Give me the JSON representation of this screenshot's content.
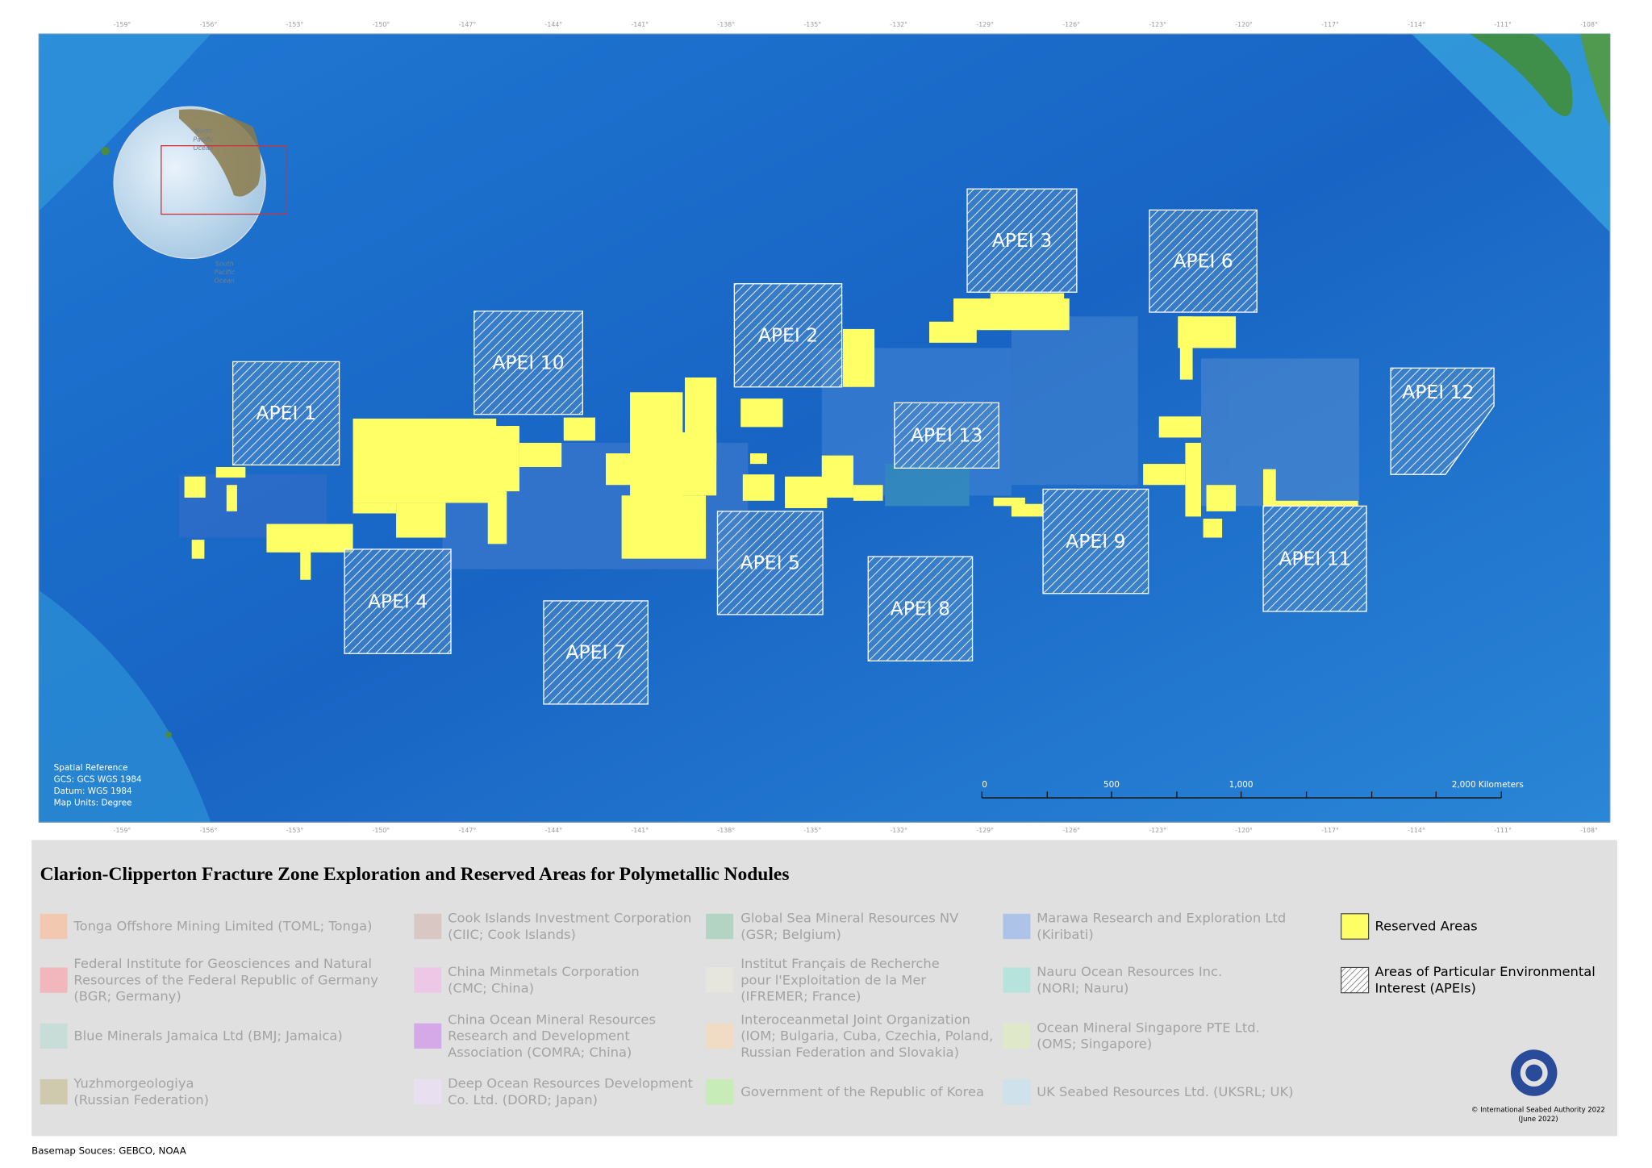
{
  "map": {
    "longitude_labels": [
      "-159°",
      "-156°",
      "-153°",
      "-150°",
      "-147°",
      "-144°",
      "-141°",
      "-138°",
      "-135°",
      "-132°",
      "-129°",
      "-126°",
      "-123°",
      "-120°",
      "-117°",
      "-114°",
      "-111°",
      "-108°"
    ],
    "apei_labels": [
      "APEI 1",
      "APEI 2",
      "APEI 3",
      "APEI 4",
      "APEI 5",
      "APEI 6",
      "APEI 7",
      "APEI 8",
      "APEI 9",
      "APEI 10",
      "APEI 11",
      "APEI 12",
      "APEI 13"
    ],
    "globe_labels": [
      [
        "North",
        "Pacific",
        "Ocean"
      ],
      [
        "South",
        "Pacific",
        "Ocean"
      ]
    ],
    "spatial_reference": [
      "Spatial Reference",
      "GCS: GCS WGS 1984",
      "Datum: WGS 1984",
      "Map Units: Degree"
    ],
    "scale_bar": [
      "0",
      "500",
      "1,000",
      "2,000 Kilometers"
    ]
  },
  "title": "Clarion-Clipperton Fracture Zone Exploration and Reserved Areas for Polymetallic Nodules",
  "legend": [
    {
      "label": [
        "Tonga Offshore Mining Limited (TOML; Tonga)"
      ],
      "color": "#f2c9b0"
    },
    {
      "label": [
        "Federal Institute for Geosciences and Natural",
        "Resources of the Federal Republic of Germany",
        "(BGR; Germany)"
      ],
      "color": "#f0b8bc"
    },
    {
      "label": [
        "Blue Minerals Jamaica Ltd (BMJ; Jamaica)"
      ],
      "color": "#c8dcd8"
    },
    {
      "label": [
        "Yuzhmorgeologiya",
        "(Russian Federation)"
      ],
      "color": "#cfc9ad"
    },
    {
      "label": [
        "Cook Islands Investment Corporation",
        "(CIIC; Cook Islands)"
      ],
      "color": "#d9c7c3"
    },
    {
      "label": [
        "China Minmetals Corporation",
        "(CMC; China)"
      ],
      "color": "#ecc8e6"
    },
    {
      "label": [
        "China Ocean Mineral Resources",
        "Research and Development",
        "Association (COMRA; China)"
      ],
      "color": "#d5a8e8"
    },
    {
      "label": [
        "Deep Ocean Resources Development",
        "Co. Ltd. (DORD; Japan)"
      ],
      "color": "#e8dff0"
    },
    {
      "label": [
        "Global Sea Mineral Resources NV",
        "(GSR; Belgium)"
      ],
      "color": "#b3d3c3"
    },
    {
      "label": [
        "Institut Français de Recherche",
        "pour l'Exploitation de la Mer",
        "(IFREMER; France)"
      ],
      "color": "#e6e6df"
    },
    {
      "label": [
        "Interoceanmetal Joint Organization",
        "(IOM; Bulgaria, Cuba, Czechia, Poland,",
        "Russian Federation and Slovakia)"
      ],
      "color": "#f0dcc4"
    },
    {
      "label": [
        "Government of the Republic of Korea"
      ],
      "color": "#c8ecb8"
    },
    {
      "label": [
        "Marawa Research and Exploration Ltd",
        "(Kiribati)"
      ],
      "color": "#aec3e8"
    },
    {
      "label": [
        "Nauru Ocean Resources Inc.",
        "(NORI; Nauru)"
      ],
      "color": "#b6e4dc"
    },
    {
      "label": [
        "Ocean Mineral Singapore PTE Ltd.",
        "(OMS; Singapore)"
      ],
      "color": "#dfe8c8"
    },
    {
      "label": [
        "UK Seabed Resources Ltd. (UKSRL; UK)"
      ],
      "color": "#cfe2ec"
    },
    {
      "label": [
        "Reserved Areas"
      ],
      "color": "#ffff66"
    },
    {
      "label": [
        "Areas of Particular Environmental",
        "Interest (APEIs)"
      ],
      "hatched": true
    }
  ],
  "copyright": [
    "© International Seabed Authority 2022",
    "(June 2022)"
  ],
  "basemap_sources": "Basemap Souces: GEBCO, NOAA"
}
